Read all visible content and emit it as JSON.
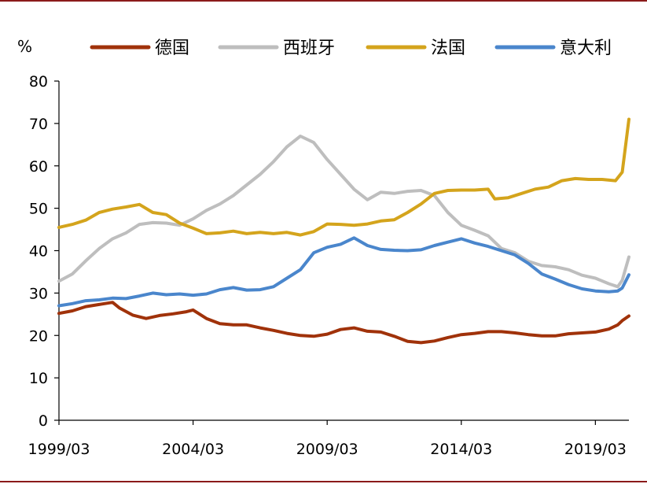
{
  "chart_data": {
    "type": "line",
    "ylabel": "%",
    "ylim": [
      0,
      80
    ],
    "yticks": [
      0,
      10,
      20,
      30,
      40,
      50,
      60,
      70,
      80
    ],
    "xlim": [
      "1999/03",
      "2020/06"
    ],
    "xticks": [
      "1999/03",
      "2004/03",
      "2009/03",
      "2014/03",
      "2019/03"
    ],
    "grid": false,
    "legend_position": "top",
    "series": [
      {
        "name": "德国",
        "color": "#a0320a",
        "points": [
          [
            "1999/03",
            25.2
          ],
          [
            "1999/09",
            25.8
          ],
          [
            "2000/03",
            26.8
          ],
          [
            "2000/09",
            27.3
          ],
          [
            "2001/03",
            27.8
          ],
          [
            "2001/06",
            26.5
          ],
          [
            "2001/12",
            24.8
          ],
          [
            "2002/06",
            24.0
          ],
          [
            "2002/12",
            24.7
          ],
          [
            "2003/06",
            25.1
          ],
          [
            "2003/12",
            25.6
          ],
          [
            "2004/03",
            26.0
          ],
          [
            "2004/09",
            24.0
          ],
          [
            "2005/03",
            22.8
          ],
          [
            "2005/09",
            22.5
          ],
          [
            "2006/03",
            22.5
          ],
          [
            "2006/09",
            21.8
          ],
          [
            "2007/03",
            21.2
          ],
          [
            "2007/09",
            20.5
          ],
          [
            "2008/03",
            20.0
          ],
          [
            "2008/09",
            19.8
          ],
          [
            "2009/03",
            20.3
          ],
          [
            "2009/09",
            21.4
          ],
          [
            "2010/03",
            21.8
          ],
          [
            "2010/09",
            21.0
          ],
          [
            "2011/03",
            20.8
          ],
          [
            "2011/09",
            19.8
          ],
          [
            "2012/03",
            18.6
          ],
          [
            "2012/09",
            18.3
          ],
          [
            "2013/03",
            18.7
          ],
          [
            "2013/09",
            19.5
          ],
          [
            "2014/03",
            20.2
          ],
          [
            "2014/09",
            20.5
          ],
          [
            "2015/03",
            20.9
          ],
          [
            "2015/09",
            20.9
          ],
          [
            "2016/03",
            20.6
          ],
          [
            "2016/09",
            20.2
          ],
          [
            "2017/03",
            19.9
          ],
          [
            "2017/09",
            19.9
          ],
          [
            "2018/03",
            20.4
          ],
          [
            "2018/09",
            20.6
          ],
          [
            "2019/03",
            20.8
          ],
          [
            "2019/09",
            21.5
          ],
          [
            "2020/01",
            22.5
          ],
          [
            "2020/03",
            23.5
          ],
          [
            "2020/06",
            24.6
          ]
        ]
      },
      {
        "name": "西班牙",
        "color": "#bebebe",
        "points": [
          [
            "1999/03",
            32.8
          ],
          [
            "1999/09",
            34.5
          ],
          [
            "2000/03",
            37.6
          ],
          [
            "2000/09",
            40.5
          ],
          [
            "2001/03",
            42.8
          ],
          [
            "2001/09",
            44.2
          ],
          [
            "2002/03",
            46.2
          ],
          [
            "2002/09",
            46.6
          ],
          [
            "2003/03",
            46.5
          ],
          [
            "2003/09",
            46.0
          ],
          [
            "2004/03",
            47.5
          ],
          [
            "2004/09",
            49.5
          ],
          [
            "2005/03",
            51.0
          ],
          [
            "2005/09",
            53.0
          ],
          [
            "2006/03",
            55.5
          ],
          [
            "2006/09",
            58.0
          ],
          [
            "2007/03",
            61.0
          ],
          [
            "2007/09",
            64.5
          ],
          [
            "2008/03",
            67.0
          ],
          [
            "2008/09",
            65.5
          ],
          [
            "2009/03",
            61.5
          ],
          [
            "2009/09",
            58.0
          ],
          [
            "2010/03",
            54.5
          ],
          [
            "2010/09",
            52.0
          ],
          [
            "2011/03",
            53.8
          ],
          [
            "2011/09",
            53.5
          ],
          [
            "2012/03",
            54.0
          ],
          [
            "2012/09",
            54.2
          ],
          [
            "2013/03",
            53.0
          ],
          [
            "2013/09",
            49.0
          ],
          [
            "2014/03",
            46.0
          ],
          [
            "2014/09",
            44.8
          ],
          [
            "2015/03",
            43.5
          ],
          [
            "2015/09",
            40.5
          ],
          [
            "2016/03",
            39.5
          ],
          [
            "2016/09",
            37.5
          ],
          [
            "2017/03",
            36.5
          ],
          [
            "2017/09",
            36.2
          ],
          [
            "2018/03",
            35.5
          ],
          [
            "2018/09",
            34.2
          ],
          [
            "2019/03",
            33.5
          ],
          [
            "2019/09",
            32.2
          ],
          [
            "2020/01",
            31.5
          ],
          [
            "2020/03",
            33.0
          ],
          [
            "2020/06",
            38.5
          ]
        ]
      },
      {
        "name": "法国",
        "color": "#d4a41c",
        "points": [
          [
            "1999/03",
            45.5
          ],
          [
            "1999/09",
            46.2
          ],
          [
            "2000/03",
            47.2
          ],
          [
            "2000/09",
            49.0
          ],
          [
            "2001/03",
            49.8
          ],
          [
            "2001/09",
            50.3
          ],
          [
            "2002/03",
            50.9
          ],
          [
            "2002/09",
            49.0
          ],
          [
            "2003/03",
            48.5
          ],
          [
            "2003/09",
            46.5
          ],
          [
            "2004/03",
            45.3
          ],
          [
            "2004/09",
            44.0
          ],
          [
            "2005/03",
            44.2
          ],
          [
            "2005/09",
            44.6
          ],
          [
            "2006/03",
            44.0
          ],
          [
            "2006/09",
            44.3
          ],
          [
            "2007/03",
            44.0
          ],
          [
            "2007/09",
            44.3
          ],
          [
            "2008/03",
            43.7
          ],
          [
            "2008/09",
            44.5
          ],
          [
            "2009/03",
            46.3
          ],
          [
            "2009/09",
            46.2
          ],
          [
            "2010/03",
            46.0
          ],
          [
            "2010/09",
            46.3
          ],
          [
            "2011/03",
            47.0
          ],
          [
            "2011/09",
            47.3
          ],
          [
            "2012/03",
            49.0
          ],
          [
            "2012/09",
            51.0
          ],
          [
            "2013/03",
            53.5
          ],
          [
            "2013/09",
            54.2
          ],
          [
            "2014/03",
            54.3
          ],
          [
            "2014/09",
            54.3
          ],
          [
            "2015/03",
            54.5
          ],
          [
            "2015/06",
            52.2
          ],
          [
            "2015/12",
            52.5
          ],
          [
            "2016/06",
            53.5
          ],
          [
            "2016/12",
            54.5
          ],
          [
            "2017/06",
            55.0
          ],
          [
            "2017/12",
            56.5
          ],
          [
            "2018/06",
            57.0
          ],
          [
            "2018/12",
            56.8
          ],
          [
            "2019/06",
            56.8
          ],
          [
            "2019/12",
            56.5
          ],
          [
            "2020/03",
            58.5
          ],
          [
            "2020/06",
            71.0
          ]
        ]
      },
      {
        "name": "意大利",
        "color": "#4a86cc",
        "points": [
          [
            "1999/03",
            27.0
          ],
          [
            "1999/09",
            27.5
          ],
          [
            "2000/03",
            28.2
          ],
          [
            "2000/09",
            28.4
          ],
          [
            "2001/03",
            28.8
          ],
          [
            "2001/09",
            28.7
          ],
          [
            "2002/03",
            29.3
          ],
          [
            "2002/09",
            30.0
          ],
          [
            "2003/03",
            29.6
          ],
          [
            "2003/09",
            29.8
          ],
          [
            "2004/03",
            29.5
          ],
          [
            "2004/09",
            29.8
          ],
          [
            "2005/03",
            30.8
          ],
          [
            "2005/09",
            31.3
          ],
          [
            "2006/03",
            30.7
          ],
          [
            "2006/09",
            30.8
          ],
          [
            "2007/03",
            31.5
          ],
          [
            "2007/09",
            33.5
          ],
          [
            "2008/03",
            35.5
          ],
          [
            "2008/09",
            39.5
          ],
          [
            "2009/03",
            40.8
          ],
          [
            "2009/09",
            41.5
          ],
          [
            "2010/03",
            43.0
          ],
          [
            "2010/09",
            41.2
          ],
          [
            "2011/03",
            40.3
          ],
          [
            "2011/09",
            40.1
          ],
          [
            "2012/03",
            40.0
          ],
          [
            "2012/09",
            40.2
          ],
          [
            "2013/03",
            41.2
          ],
          [
            "2013/09",
            42.0
          ],
          [
            "2014/03",
            42.8
          ],
          [
            "2014/09",
            41.8
          ],
          [
            "2015/03",
            41.0
          ],
          [
            "2015/09",
            40.0
          ],
          [
            "2016/03",
            39.0
          ],
          [
            "2016/09",
            37.0
          ],
          [
            "2017/03",
            34.5
          ],
          [
            "2017/09",
            33.3
          ],
          [
            "2018/03",
            32.0
          ],
          [
            "2018/09",
            31.0
          ],
          [
            "2019/03",
            30.5
          ],
          [
            "2019/09",
            30.3
          ],
          [
            "2020/01",
            30.5
          ],
          [
            "2020/03",
            31.2
          ],
          [
            "2020/06",
            34.3
          ]
        ]
      }
    ]
  }
}
